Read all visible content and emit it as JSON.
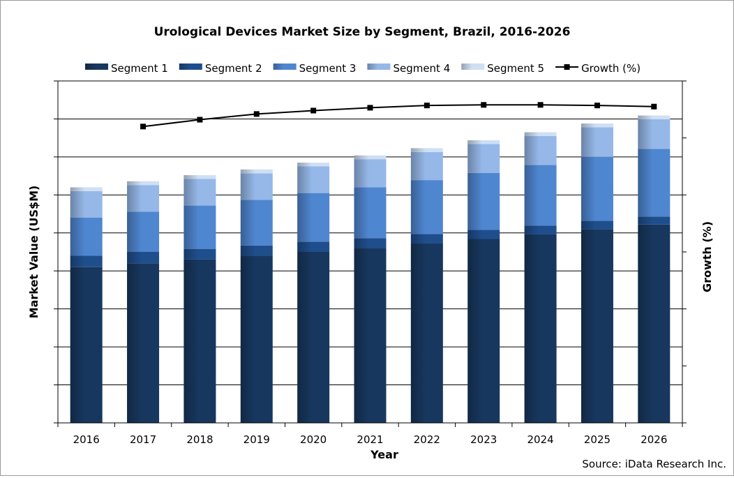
{
  "chart_data": {
    "type": "bar",
    "stacked": true,
    "title": "Urological Devices Market Size by Segment, Brazil, 2016-2026",
    "xlabel": "Year",
    "ylabel": "Market Value (US$M)",
    "y2label": "Growth (%)",
    "source": "Source: iData Research Inc.",
    "categories": [
      "2016",
      "2017",
      "2018",
      "2019",
      "2020",
      "2021",
      "2022",
      "2023",
      "2024",
      "2025",
      "2026"
    ],
    "ylim": [
      0,
      9
    ],
    "y2lim": [
      0,
      6
    ],
    "grid": true,
    "legend_position": "top",
    "series": [
      {
        "name": "Segment 1",
        "color": "#17375e",
        "values": [
          4.1,
          4.2,
          4.3,
          4.4,
          4.5,
          4.6,
          4.72,
          4.84,
          4.96,
          5.1,
          5.22
        ]
      },
      {
        "name": "Segment 2",
        "color": "#1f4e8c",
        "values": [
          0.3,
          0.3,
          0.28,
          0.27,
          0.27,
          0.26,
          0.25,
          0.24,
          0.23,
          0.22,
          0.21
        ]
      },
      {
        "name": "Segment 3",
        "color": "#4f86d0",
        "values": [
          1.0,
          1.06,
          1.14,
          1.2,
          1.28,
          1.34,
          1.42,
          1.5,
          1.6,
          1.68,
          1.78
        ]
      },
      {
        "name": "Segment 4",
        "color": "#95b8e8",
        "values": [
          0.7,
          0.7,
          0.7,
          0.7,
          0.7,
          0.74,
          0.74,
          0.76,
          0.76,
          0.78,
          0.78
        ]
      },
      {
        "name": "Segment 5",
        "color": "#cfdff4",
        "values": [
          0.1,
          0.1,
          0.1,
          0.1,
          0.1,
          0.1,
          0.1,
          0.1,
          0.1,
          0.1,
          0.1
        ]
      }
    ],
    "line_series": {
      "name": "Growth (%)",
      "color": "#000000",
      "values": [
        null,
        5.2,
        5.32,
        5.42,
        5.48,
        5.53,
        5.57,
        5.58,
        5.58,
        5.57,
        5.55
      ]
    }
  }
}
